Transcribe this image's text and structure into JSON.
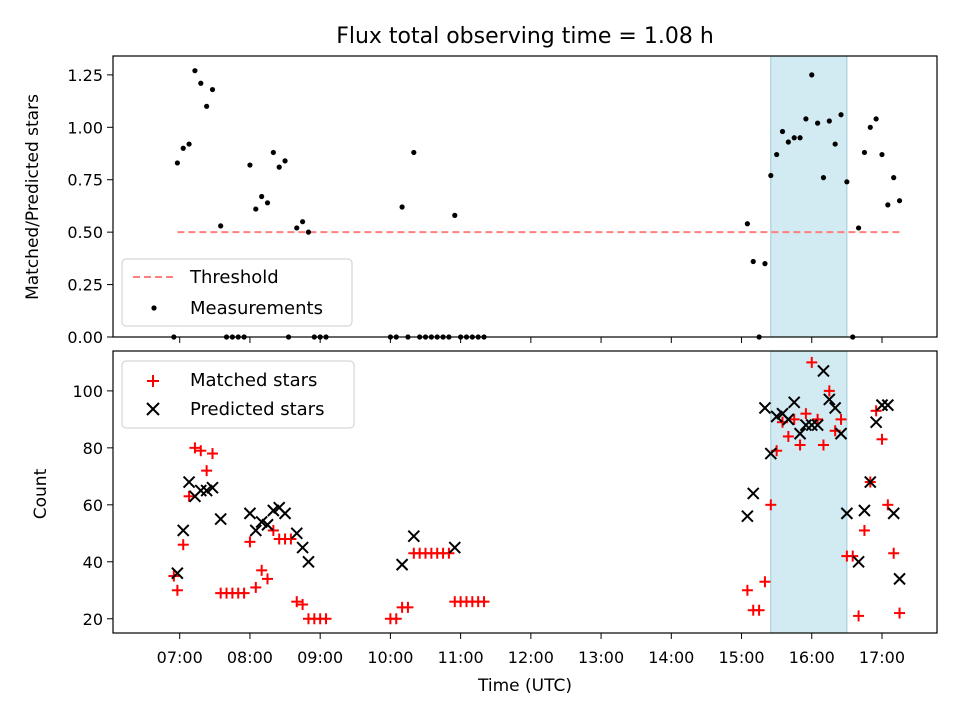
{
  "title": "Flux total observing time = 1.08 h",
  "xlabel": "Time (UTC)",
  "x_tick_labels": [
    "07:00",
    "08:00",
    "09:00",
    "10:00",
    "11:00",
    "12:00",
    "13:00",
    "14:00",
    "15:00",
    "16:00",
    "17:00"
  ],
  "highlight": {
    "start": "15:25",
    "end": "16:30",
    "color": "#add8e6"
  },
  "chart_data": [
    {
      "type": "scatter",
      "ylabel": "Matched/Predicted stars",
      "xlim": [
        "06:03",
        "17:47"
      ],
      "ylim": [
        0,
        1.34
      ],
      "y_ticks": [
        0.0,
        0.25,
        0.5,
        0.75,
        1.0,
        1.25
      ],
      "y_tick_labels": [
        "0.00",
        "0.25",
        "0.50",
        "0.75",
        "1.00",
        "1.25"
      ],
      "legend_position": "lower-left",
      "threshold": {
        "name": "Threshold",
        "value": 0.5,
        "x_start": "06:58",
        "x_end": "17:15",
        "color": "#ff7f7f",
        "style": "dashed"
      },
      "series": [
        {
          "name": "Measurements",
          "marker": "dot",
          "color": "#000000",
          "points": [
            [
              "06:55",
              0.0
            ],
            [
              "06:58",
              0.83
            ],
            [
              "07:03",
              0.9
            ],
            [
              "07:08",
              0.92
            ],
            [
              "07:13",
              1.27
            ],
            [
              "07:18",
              1.21
            ],
            [
              "07:23",
              1.1
            ],
            [
              "07:28",
              1.18
            ],
            [
              "07:35",
              0.53
            ],
            [
              "07:40",
              0.0
            ],
            [
              "07:45",
              0.0
            ],
            [
              "07:50",
              0.0
            ],
            [
              "07:55",
              0.0
            ],
            [
              "08:00",
              0.82
            ],
            [
              "08:05",
              0.61
            ],
            [
              "08:10",
              0.67
            ],
            [
              "08:15",
              0.64
            ],
            [
              "08:20",
              0.88
            ],
            [
              "08:25",
              0.81
            ],
            [
              "08:30",
              0.84
            ],
            [
              "08:33",
              0.0
            ],
            [
              "08:40",
              0.52
            ],
            [
              "08:45",
              0.55
            ],
            [
              "08:50",
              0.5
            ],
            [
              "08:55",
              0.0
            ],
            [
              "09:00",
              0.0
            ],
            [
              "09:05",
              0.0
            ],
            [
              "10:00",
              0.0
            ],
            [
              "10:05",
              0.0
            ],
            [
              "10:10",
              0.62
            ],
            [
              "10:15",
              0.0
            ],
            [
              "10:20",
              0.88
            ],
            [
              "10:25",
              0.0
            ],
            [
              "10:30",
              0.0
            ],
            [
              "10:35",
              0.0
            ],
            [
              "10:40",
              0.0
            ],
            [
              "10:45",
              0.0
            ],
            [
              "10:50",
              0.0
            ],
            [
              "10:55",
              0.58
            ],
            [
              "11:00",
              0.0
            ],
            [
              "11:05",
              0.0
            ],
            [
              "11:10",
              0.0
            ],
            [
              "11:15",
              0.0
            ],
            [
              "11:20",
              0.0
            ],
            [
              "15:05",
              0.54
            ],
            [
              "15:10",
              0.36
            ],
            [
              "15:15",
              0.0
            ],
            [
              "15:20",
              0.35
            ],
            [
              "15:25",
              0.77
            ],
            [
              "15:30",
              0.87
            ],
            [
              "15:35",
              0.98
            ],
            [
              "15:40",
              0.93
            ],
            [
              "15:45",
              0.95
            ],
            [
              "15:50",
              0.95
            ],
            [
              "15:55",
              1.04
            ],
            [
              "16:00",
              1.25
            ],
            [
              "16:05",
              1.02
            ],
            [
              "16:10",
              0.76
            ],
            [
              "16:15",
              1.03
            ],
            [
              "16:20",
              0.92
            ],
            [
              "16:25",
              1.06
            ],
            [
              "16:30",
              0.74
            ],
            [
              "16:35",
              0.0
            ],
            [
              "16:40",
              0.52
            ],
            [
              "16:45",
              0.88
            ],
            [
              "16:50",
              1.0
            ],
            [
              "16:55",
              1.04
            ],
            [
              "17:00",
              0.87
            ],
            [
              "17:05",
              0.63
            ],
            [
              "17:10",
              0.76
            ],
            [
              "17:15",
              0.65
            ]
          ]
        }
      ]
    },
    {
      "type": "scatter",
      "ylabel": "Count",
      "xlim": [
        "06:03",
        "17:47"
      ],
      "ylim": [
        15,
        114
      ],
      "y_ticks": [
        20,
        40,
        60,
        80,
        100
      ],
      "y_tick_labels": [
        "20",
        "40",
        "60",
        "80",
        "100"
      ],
      "legend_position": "upper-left",
      "series": [
        {
          "name": "Matched stars",
          "marker": "plus",
          "color": "#ff0000",
          "points": [
            [
              "06:55",
              35
            ],
            [
              "06:58",
              30
            ],
            [
              "07:03",
              46
            ],
            [
              "07:08",
              63
            ],
            [
              "07:13",
              80
            ],
            [
              "07:18",
              79
            ],
            [
              "07:23",
              72
            ],
            [
              "07:28",
              78
            ],
            [
              "07:35",
              29
            ],
            [
              "07:40",
              29
            ],
            [
              "07:45",
              29
            ],
            [
              "07:50",
              29
            ],
            [
              "07:55",
              29
            ],
            [
              "08:00",
              47
            ],
            [
              "08:05",
              31
            ],
            [
              "08:10",
              37
            ],
            [
              "08:15",
              34
            ],
            [
              "08:20",
              51
            ],
            [
              "08:25",
              48
            ],
            [
              "08:30",
              48
            ],
            [
              "08:35",
              48
            ],
            [
              "08:40",
              26
            ],
            [
              "08:45",
              25
            ],
            [
              "08:50",
              20
            ],
            [
              "08:55",
              20
            ],
            [
              "09:00",
              20
            ],
            [
              "09:05",
              20
            ],
            [
              "10:00",
              20
            ],
            [
              "10:05",
              20
            ],
            [
              "10:10",
              24
            ],
            [
              "10:15",
              24
            ],
            [
              "10:20",
              43
            ],
            [
              "10:25",
              43
            ],
            [
              "10:30",
              43
            ],
            [
              "10:35",
              43
            ],
            [
              "10:40",
              43
            ],
            [
              "10:45",
              43
            ],
            [
              "10:50",
              43
            ],
            [
              "10:55",
              26
            ],
            [
              "11:00",
              26
            ],
            [
              "11:05",
              26
            ],
            [
              "11:10",
              26
            ],
            [
              "11:15",
              26
            ],
            [
              "11:20",
              26
            ],
            [
              "15:05",
              30
            ],
            [
              "15:10",
              23
            ],
            [
              "15:15",
              23
            ],
            [
              "15:20",
              33
            ],
            [
              "15:25",
              60
            ],
            [
              "15:30",
              79
            ],
            [
              "15:35",
              89
            ],
            [
              "15:40",
              84
            ],
            [
              "15:45",
              90
            ],
            [
              "15:50",
              81
            ],
            [
              "15:55",
              92
            ],
            [
              "16:00",
              110
            ],
            [
              "16:05",
              90
            ],
            [
              "16:10",
              81
            ],
            [
              "16:15",
              100
            ],
            [
              "16:20",
              86
            ],
            [
              "16:25",
              90
            ],
            [
              "16:30",
              42
            ],
            [
              "16:35",
              42
            ],
            [
              "16:40",
              21
            ],
            [
              "16:45",
              51
            ],
            [
              "16:50",
              68
            ],
            [
              "16:55",
              93
            ],
            [
              "17:00",
              83
            ],
            [
              "17:05",
              60
            ],
            [
              "17:10",
              43
            ],
            [
              "17:15",
              22
            ]
          ]
        },
        {
          "name": "Predicted stars",
          "marker": "x",
          "color": "#000000",
          "points": [
            [
              "06:58",
              36
            ],
            [
              "07:03",
              51
            ],
            [
              "07:08",
              68
            ],
            [
              "07:13",
              63
            ],
            [
              "07:18",
              65
            ],
            [
              "07:23",
              65
            ],
            [
              "07:28",
              66
            ],
            [
              "07:35",
              55
            ],
            [
              "08:00",
              57
            ],
            [
              "08:05",
              51
            ],
            [
              "08:10",
              54
            ],
            [
              "08:15",
              53
            ],
            [
              "08:20",
              58
            ],
            [
              "08:25",
              59
            ],
            [
              "08:30",
              57
            ],
            [
              "08:40",
              50
            ],
            [
              "08:45",
              45
            ],
            [
              "08:50",
              40
            ],
            [
              "10:10",
              39
            ],
            [
              "10:20",
              49
            ],
            [
              "10:55",
              45
            ],
            [
              "15:05",
              56
            ],
            [
              "15:10",
              64
            ],
            [
              "15:20",
              94
            ],
            [
              "15:25",
              78
            ],
            [
              "15:30",
              91
            ],
            [
              "15:35",
              92
            ],
            [
              "15:40",
              90
            ],
            [
              "15:45",
              96
            ],
            [
              "15:50",
              85
            ],
            [
              "15:55",
              88
            ],
            [
              "16:00",
              88
            ],
            [
              "16:05",
              88
            ],
            [
              "16:10",
              107
            ],
            [
              "16:15",
              97
            ],
            [
              "16:20",
              94
            ],
            [
              "16:25",
              85
            ],
            [
              "16:30",
              57
            ],
            [
              "16:40",
              40
            ],
            [
              "16:45",
              58
            ],
            [
              "16:50",
              68
            ],
            [
              "16:55",
              89
            ],
            [
              "17:00",
              95
            ],
            [
              "17:05",
              95
            ],
            [
              "17:10",
              57
            ],
            [
              "17:15",
              34
            ]
          ]
        }
      ]
    }
  ]
}
